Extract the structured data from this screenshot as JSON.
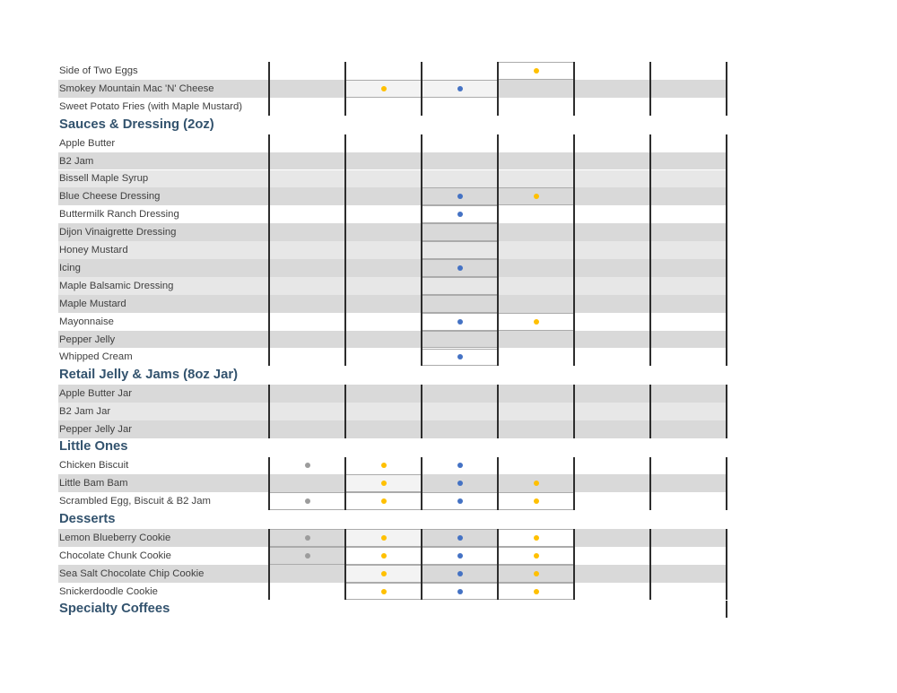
{
  "table": {
    "dot_colors": {
      "yellow": "#FFC000",
      "blue": "#4472C4",
      "gray": "#9C9C9C"
    },
    "shade_colors": {
      "white": "#FFFFFF",
      "gray": "#D9D9D9",
      "light": "#E7E7E7"
    },
    "box_fills": {
      "lighter": "#F3F3F3",
      "white": "#FFFFFF",
      "gray": "#D9D9D9"
    },
    "header_text_color": "#33536E",
    "divider_color": "#2D2D2D",
    "sections": [
      {
        "header": "",
        "rows": [
          {
            "label": "Side of Two Eggs",
            "shade": "white",
            "dots": [
              {
                "col": 4,
                "color": "yellow"
              }
            ],
            "boxes": [
              {
                "col": 4,
                "fill": "white"
              }
            ]
          },
          {
            "label": "Smokey Mountain Mac 'N' Cheese",
            "shade": "gray",
            "dots": [
              {
                "col": 2,
                "color": "yellow"
              },
              {
                "col": 3,
                "color": "blue"
              }
            ],
            "boxes": [
              {
                "col": 2,
                "fill": "lighter"
              },
              {
                "col": 3,
                "fill": "lighter"
              }
            ]
          },
          {
            "label": "Sweet Potato Fries (with Maple Mustard)",
            "shade": "white",
            "dots": [],
            "boxes": []
          }
        ]
      },
      {
        "header": "Sauces & Dressing (2oz)",
        "rows": [
          {
            "label": "Apple Butter",
            "shade": "white",
            "dots": [],
            "boxes": []
          },
          {
            "label": "B2 Jam",
            "shade": "gray",
            "dots": [],
            "boxes": []
          },
          {
            "label": "Bissell Maple Syrup",
            "shade": "light",
            "dots": [],
            "boxes": []
          },
          {
            "label": "Blue Cheese Dressing",
            "shade": "gray",
            "dots": [
              {
                "col": 3,
                "color": "blue"
              },
              {
                "col": 4,
                "color": "yellow"
              }
            ],
            "boxes": [
              {
                "col": 3,
                "fill": ""
              },
              {
                "col": 4,
                "fill": ""
              }
            ]
          },
          {
            "label": "Buttermilk Ranch Dressing",
            "shade": "white",
            "dots": [
              {
                "col": 3,
                "color": "blue"
              }
            ],
            "boxes": [
              {
                "col": 3,
                "fill": ""
              }
            ]
          },
          {
            "label": "Dijon Vinaigrette Dressing",
            "shade": "gray",
            "dots": [],
            "boxes": [
              {
                "col": 3,
                "fill": ""
              }
            ]
          },
          {
            "label": "Honey Mustard",
            "shade": "light",
            "dots": [],
            "boxes": [
              {
                "col": 3,
                "fill": ""
              }
            ]
          },
          {
            "label": "Icing",
            "shade": "gray",
            "dots": [
              {
                "col": 3,
                "color": "blue"
              }
            ],
            "boxes": [
              {
                "col": 3,
                "fill": ""
              }
            ]
          },
          {
            "label": "Maple Balsamic Dressing",
            "shade": "light",
            "dots": [],
            "boxes": [
              {
                "col": 3,
                "fill": ""
              }
            ]
          },
          {
            "label": "Maple Mustard",
            "shade": "gray",
            "dots": [],
            "boxes": [
              {
                "col": 3,
                "fill": ""
              }
            ]
          },
          {
            "label": "Mayonnaise",
            "shade": "white",
            "dots": [
              {
                "col": 3,
                "color": "blue"
              },
              {
                "col": 4,
                "color": "yellow"
              }
            ],
            "boxes": [
              {
                "col": 3,
                "fill": ""
              },
              {
                "col": 4,
                "fill": ""
              }
            ]
          },
          {
            "label": "Pepper Jelly",
            "shade": "gray",
            "dots": [],
            "boxes": [
              {
                "col": 3,
                "fill": ""
              }
            ]
          },
          {
            "label": "Whipped Cream",
            "shade": "white",
            "dots": [
              {
                "col": 3,
                "color": "blue"
              }
            ],
            "boxes": [
              {
                "col": 3,
                "fill": ""
              }
            ]
          }
        ]
      },
      {
        "header": "Retail Jelly & Jams (8oz Jar)",
        "rows": [
          {
            "label": "Apple Butter Jar",
            "shade": "gray",
            "dots": [],
            "boxes": []
          },
          {
            "label": "B2 Jam Jar",
            "shade": "light",
            "dots": [],
            "boxes": []
          },
          {
            "label": "Pepper Jelly Jar",
            "shade": "gray",
            "dots": [],
            "boxes": []
          }
        ]
      },
      {
        "header": "Little Ones",
        "rows": [
          {
            "label": "Chicken Biscuit",
            "shade": "white",
            "dots": [
              {
                "col": 1,
                "color": "gray"
              },
              {
                "col": 2,
                "color": "yellow"
              },
              {
                "col": 3,
                "color": "blue"
              }
            ],
            "boxes": []
          },
          {
            "label": "Little Bam Bam",
            "shade": "gray",
            "dots": [
              {
                "col": 2,
                "color": "yellow"
              },
              {
                "col": 3,
                "color": "blue"
              },
              {
                "col": 4,
                "color": "yellow"
              }
            ],
            "boxes": [
              {
                "col": 2,
                "fill": "lighter"
              }
            ]
          },
          {
            "label": "Scrambled Egg, Biscuit & B2 Jam",
            "shade": "white",
            "dots": [
              {
                "col": 1,
                "color": "gray"
              },
              {
                "col": 2,
                "color": "yellow"
              },
              {
                "col": 3,
                "color": "blue"
              },
              {
                "col": 4,
                "color": "yellow"
              }
            ],
            "boxes": [
              {
                "col": 1,
                "fill": ""
              },
              {
                "col": 2,
                "fill": ""
              },
              {
                "col": 3,
                "fill": ""
              },
              {
                "col": 4,
                "fill": ""
              }
            ]
          }
        ]
      },
      {
        "header": "Desserts",
        "rows": [
          {
            "label": "Lemon Blueberry Cookie",
            "shade": "gray",
            "dots": [
              {
                "col": 1,
                "color": "gray"
              },
              {
                "col": 2,
                "color": "yellow"
              },
              {
                "col": 3,
                "color": "blue"
              },
              {
                "col": 4,
                "color": "yellow"
              }
            ],
            "boxes": [
              {
                "col": 1,
                "fill": ""
              },
              {
                "col": 2,
                "fill": "lighter"
              },
              {
                "col": 3,
                "fill": ""
              },
              {
                "col": 4,
                "fill": "white"
              }
            ]
          },
          {
            "label": "Chocolate Chunk Cookie",
            "shade": "white",
            "dots": [
              {
                "col": 1,
                "color": "gray"
              },
              {
                "col": 2,
                "color": "yellow"
              },
              {
                "col": 3,
                "color": "blue"
              },
              {
                "col": 4,
                "color": "yellow"
              }
            ],
            "boxes": [
              {
                "col": 1,
                "fill": "gray"
              },
              {
                "col": 2,
                "fill": ""
              },
              {
                "col": 3,
                "fill": ""
              },
              {
                "col": 4,
                "fill": ""
              }
            ]
          },
          {
            "label": "Sea Salt Chocolate Chip Cookie",
            "shade": "gray",
            "dots": [
              {
                "col": 2,
                "color": "yellow"
              },
              {
                "col": 3,
                "color": "blue"
              },
              {
                "col": 4,
                "color": "yellow"
              }
            ],
            "boxes": [
              {
                "col": 2,
                "fill": "lighter"
              },
              {
                "col": 3,
                "fill": ""
              },
              {
                "col": 4,
                "fill": ""
              }
            ]
          },
          {
            "label": "Snickerdoodle Cookie",
            "shade": "white",
            "dots": [
              {
                "col": 2,
                "color": "yellow"
              },
              {
                "col": 3,
                "color": "blue"
              },
              {
                "col": 4,
                "color": "yellow"
              }
            ],
            "boxes": [
              {
                "col": 2,
                "fill": ""
              },
              {
                "col": 3,
                "fill": ""
              },
              {
                "col": 4,
                "fill": ""
              }
            ]
          }
        ]
      },
      {
        "header": "Specialty Coffees",
        "rows": []
      }
    ]
  }
}
